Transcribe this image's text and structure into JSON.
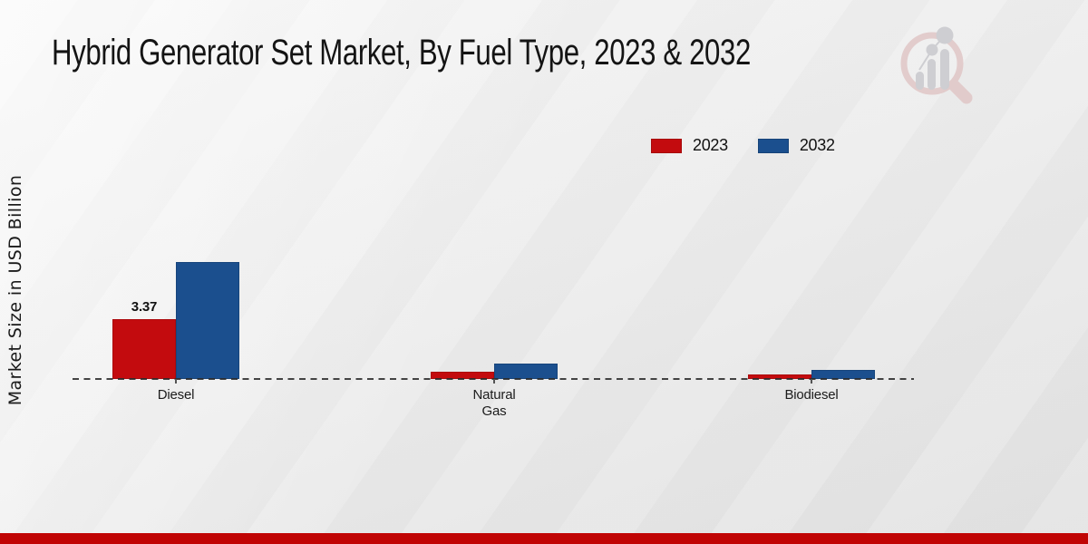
{
  "page": {
    "title": "Hybrid Generator Set Market, By Fuel Type, 2023 & 2032",
    "y_axis_label": "Market Size in USD Billion",
    "watermark_icon": "market-research-future-logo",
    "footer_band_color": "#c00404"
  },
  "legend": {
    "items": [
      {
        "label": "2023",
        "color": "#c30b0e"
      },
      {
        "label": "2032",
        "color": "#1b4f8e"
      }
    ]
  },
  "chart_data": {
    "type": "bar",
    "title": "Hybrid Generator Set Market, By Fuel Type, 2023 & 2032",
    "xlabel": "",
    "ylabel": "Market Size in USD Billion",
    "categories": [
      "Diesel",
      "Natural Gas",
      "Biodiesel"
    ],
    "series": [
      {
        "name": "2023",
        "color": "#c30b0e",
        "values": [
          3.37,
          0.41,
          0.23
        ]
      },
      {
        "name": "2032",
        "color": "#1b4f8e",
        "values": [
          6.59,
          0.87,
          0.51
        ]
      }
    ],
    "value_labels": [
      {
        "category": "Diesel",
        "series": "2023",
        "text": "3.37"
      }
    ],
    "ylim": [
      0,
      7
    ],
    "grid": false,
    "baseline_style": "dashed",
    "legend_position": "top-right"
  }
}
